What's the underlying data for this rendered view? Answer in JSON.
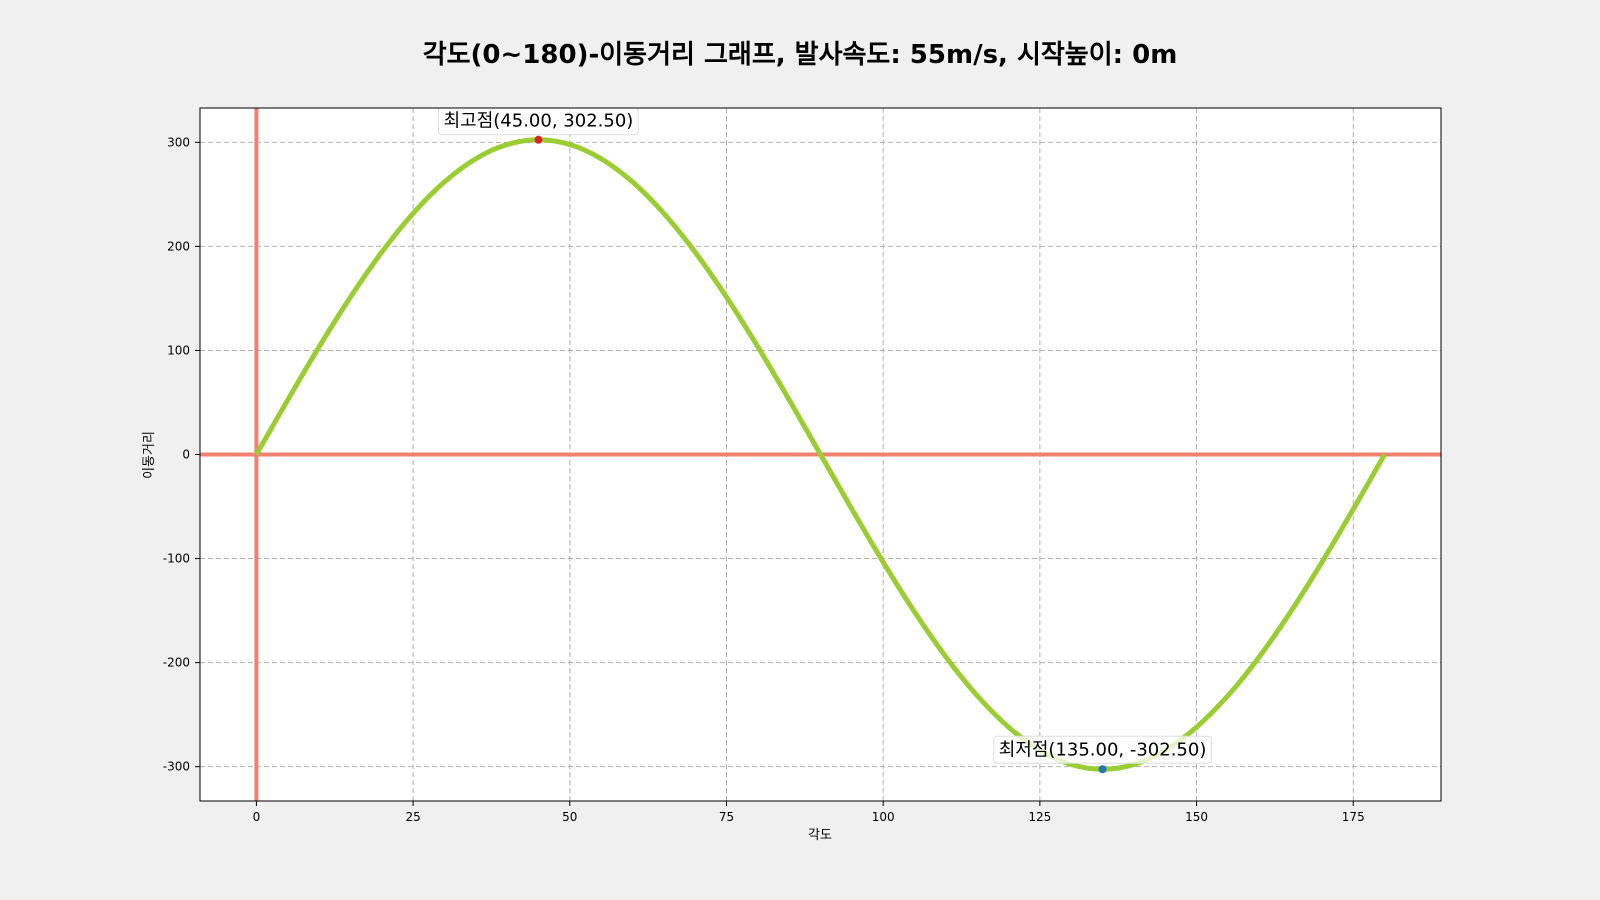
{
  "chart_data": {
    "type": "line",
    "title": "각도(0~180)-이동거리 그래프, 발사속도: 55m/s, 시작높이: 0m",
    "xlabel": "각도",
    "ylabel": "이동거리",
    "xlim": [
      -9,
      189
    ],
    "ylim": [
      -333,
      333
    ],
    "xticks": [
      0,
      25,
      50,
      75,
      100,
      125,
      150,
      175
    ],
    "yticks": [
      300,
      200,
      100,
      0,
      -100,
      -200,
      -300
    ],
    "xtick_labels": [
      "0",
      "25",
      "50",
      "75",
      "100",
      "125",
      "150",
      "175"
    ],
    "ytick_labels": [
      "300",
      "200",
      "100",
      "0",
      "-100",
      "-200",
      "-300"
    ],
    "grid": true,
    "series": [
      {
        "color": "#9acd32",
        "x": [
          0,
          5,
          10,
          15,
          20,
          25,
          30,
          35,
          40,
          45,
          50,
          55,
          60,
          65,
          70,
          75,
          80,
          85,
          90,
          95,
          100,
          105,
          110,
          115,
          120,
          125,
          130,
          135,
          140,
          145,
          150,
          155,
          160,
          165,
          170,
          175,
          180
        ],
        "values": [
          0,
          52.53,
          103.46,
          151.25,
          194.44,
          231.73,
          261.97,
          284.26,
          297.9,
          302.5,
          297.9,
          284.26,
          261.97,
          231.73,
          194.44,
          151.25,
          103.46,
          52.53,
          0,
          -52.53,
          -103.46,
          -151.25,
          -194.44,
          -231.73,
          -261.97,
          -284.26,
          -297.9,
          -302.5,
          -297.9,
          -284.26,
          -261.97,
          -231.73,
          -194.44,
          -151.25,
          -103.46,
          -52.53,
          0
        ]
      }
    ],
    "reference_lines": {
      "color": "#f08070",
      "x": 0,
      "y": 0
    },
    "annotations": [
      {
        "label": "최고점(45.00, 302.50)",
        "x": 45,
        "y": 302.5,
        "marker_color": "#d62728"
      },
      {
        "label": "최저점(135.00, -302.50)",
        "x": 135,
        "y": -302.5,
        "marker_color": "#1f77b4"
      }
    ]
  }
}
